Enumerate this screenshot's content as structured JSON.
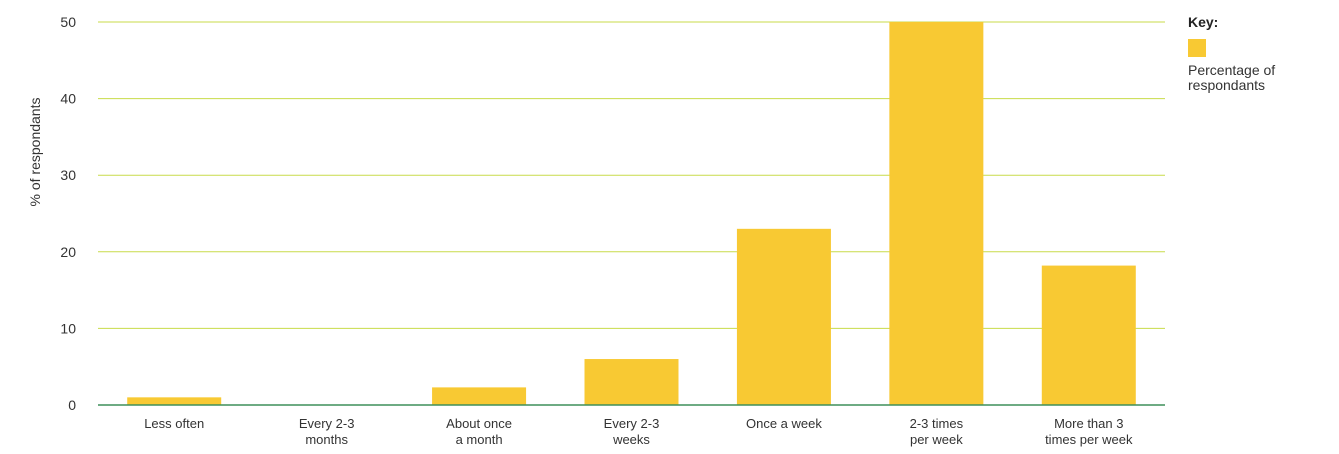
{
  "chart_data": {
    "type": "bar",
    "ylabel": "% of respondants",
    "ylim": [
      0,
      50
    ],
    "yticks": [
      0,
      10,
      20,
      30,
      40,
      50
    ],
    "grid": true,
    "legend_position": "right",
    "categories": [
      [
        "Less often"
      ],
      [
        "Every 2-3",
        "months"
      ],
      [
        "About once",
        "a month"
      ],
      [
        "Every 2-3",
        "weeks"
      ],
      [
        "Once a week"
      ],
      [
        "2-3 times",
        "per week"
      ],
      [
        "More than 3",
        "times per week"
      ]
    ],
    "series": [
      {
        "name": "Percentage of respondants",
        "color": "#F8C933",
        "values": [
          1,
          0,
          2.3,
          6,
          23,
          50,
          18.2
        ]
      }
    ]
  },
  "legend": {
    "title": "Key:",
    "label": "Percentage of respondants"
  },
  "colors": {
    "bar": "#F8C933",
    "grid": "#C8DB4A",
    "baseline": "#3F8F5A"
  }
}
